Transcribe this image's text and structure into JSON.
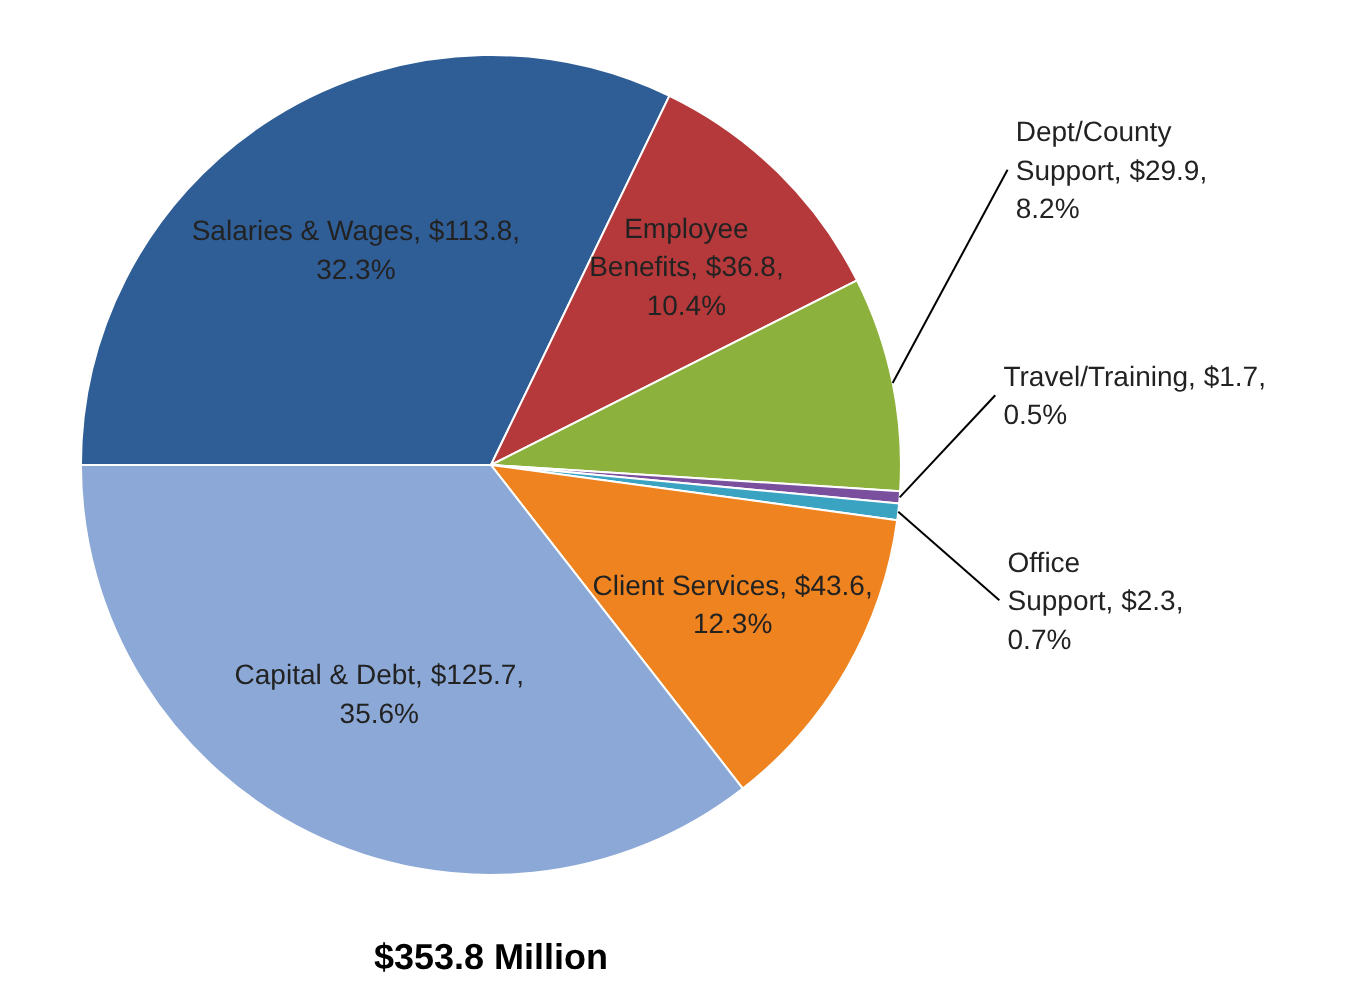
{
  "chart_data": {
    "type": "pie",
    "title": "$353.8 Million",
    "categories": [
      "Salaries & Wages",
      "Employee Benefits",
      "Dept/County Support",
      "Travel/Training",
      "Office Support",
      "Client Services",
      "Capital & Debt"
    ],
    "values": [
      113.8,
      36.8,
      29.9,
      1.7,
      2.3,
      43.6,
      125.7
    ],
    "value_labels": [
      "$113.8, 32.3%",
      "$36.8, 10.4%",
      "$29.9, 8.2%",
      "$1.7, 0.5%",
      "$2.3, 0.7%",
      "$43.6, 12.3%",
      "$125.7, 35.6%"
    ],
    "colors": [
      "#2f5d96",
      "#b5393a",
      "#8cb13c",
      "#7a4f9d",
      "#3aa3c2",
      "#ee8320",
      "#8ba8d6"
    ]
  }
}
